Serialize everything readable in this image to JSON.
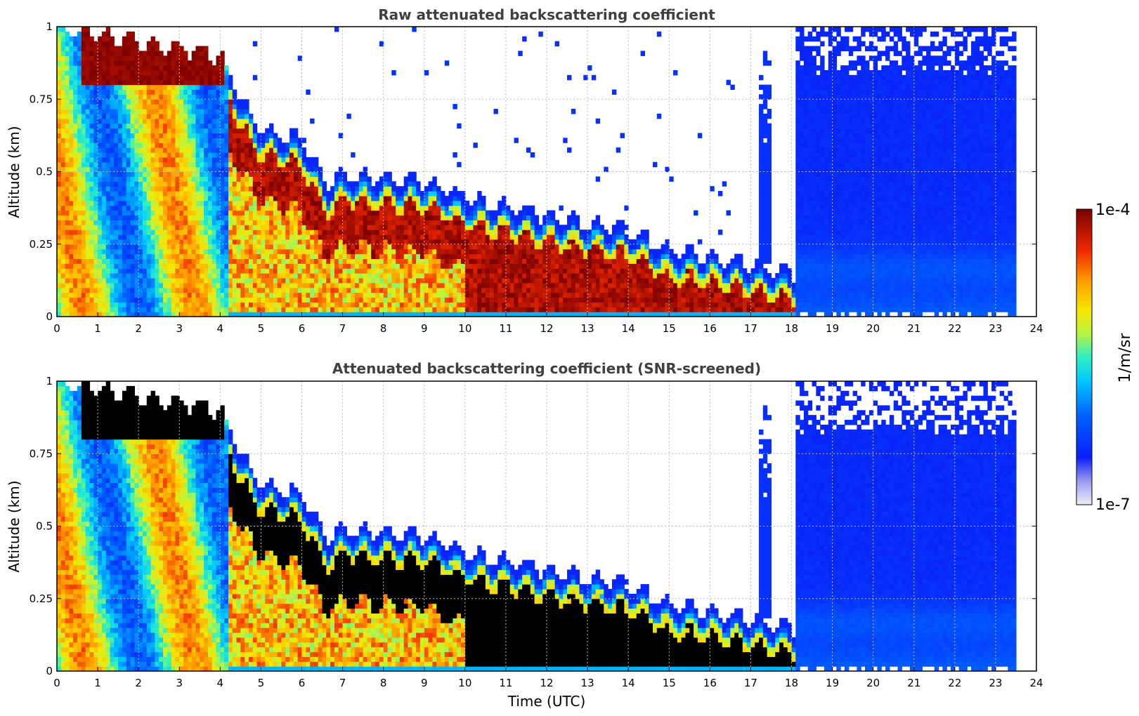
{
  "chart_data": [
    {
      "type": "heatmap",
      "title": "Raw attenuated backscattering coefficient",
      "xlabel": "",
      "ylabel": "Altitude (km)",
      "xlim": [
        0,
        24
      ],
      "ylim": [
        0,
        1
      ],
      "x_ticks": [
        "0",
        "1",
        "2",
        "3",
        "4",
        "5",
        "6",
        "7",
        "8",
        "9",
        "10",
        "11",
        "12",
        "13",
        "14",
        "15",
        "16",
        "17",
        "18",
        "19",
        "20",
        "21",
        "22",
        "23",
        "24"
      ],
      "y_ticks": [
        "0",
        "0.25",
        "0.5",
        "0.75",
        "1"
      ],
      "grid": true,
      "screened": false,
      "layer_top_km": [
        {
          "time": 0.0,
          "top": 1.0
        },
        {
          "time": 4.0,
          "top": 0.9
        },
        {
          "time": 4.5,
          "top": 0.72
        },
        {
          "time": 5.0,
          "top": 0.62
        },
        {
          "time": 6.0,
          "top": 0.58
        },
        {
          "time": 6.6,
          "top": 0.42
        },
        {
          "time": 7.0,
          "top": 0.46
        },
        {
          "time": 9.0,
          "top": 0.44
        },
        {
          "time": 10.0,
          "top": 0.38
        },
        {
          "time": 12.0,
          "top": 0.32
        },
        {
          "time": 14.0,
          "top": 0.27
        },
        {
          "time": 15.0,
          "top": 0.2
        },
        {
          "time": 16.0,
          "top": 0.18
        },
        {
          "time": 17.0,
          "top": 0.15
        },
        {
          "time": 18.0,
          "top": 0.12
        }
      ],
      "clear_region": {
        "start": 18.1,
        "end": 23.55,
        "value": "low (~1e-6)"
      }
    },
    {
      "type": "heatmap",
      "title": "Attenuated backscattering coefficient (SNR-screened)",
      "xlabel": "Time (UTC)",
      "ylabel": "Altitude (km)",
      "xlim": [
        0,
        24
      ],
      "ylim": [
        0,
        1
      ],
      "x_ticks": [
        "0",
        "1",
        "2",
        "3",
        "4",
        "5",
        "6",
        "7",
        "8",
        "9",
        "10",
        "11",
        "12",
        "13",
        "14",
        "15",
        "16",
        "17",
        "18",
        "19",
        "20",
        "21",
        "22",
        "23",
        "24"
      ],
      "y_ticks": [
        "0",
        "0.25",
        "0.5",
        "0.75",
        "1"
      ],
      "grid": true,
      "screened": true,
      "clear_region": {
        "start": 18.1,
        "end": 23.55,
        "value": "low (~1e-6)"
      }
    }
  ],
  "colorbar": {
    "max_label": "1e-4",
    "min_label": "1e-7",
    "unit_label": "1/m/sr",
    "min": 1e-07,
    "max": 0.0001,
    "scale": "log",
    "colors": [
      "#efeff7",
      "#c8c8f0",
      "#9a9af0",
      "#3c3cf5",
      "#0a1efa",
      "#0050ff",
      "#0096ff",
      "#00c8ff",
      "#22e8d8",
      "#6ef68a",
      "#c8f53c",
      "#f8e600",
      "#ffb400",
      "#ff6a00",
      "#e81e00",
      "#b00000",
      "#7a0000"
    ]
  }
}
